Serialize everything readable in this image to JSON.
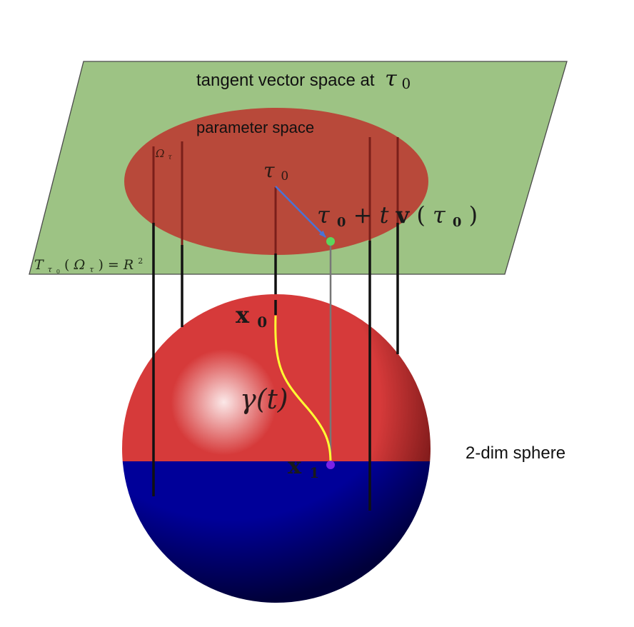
{
  "labels": {
    "tangent_title_text": "tangent vector space at ",
    "tangent_title_symbol": "τ",
    "tangent_title_sub": "0",
    "parameter_space": "parameter space",
    "omega_symbol": "Ω",
    "omega_sub": "τ",
    "tau0_symbol": "τ",
    "tau0_sub": "0",
    "step_prefix": "τ",
    "step_prefix_sub": "0",
    "step_middle": " + t",
    "step_vector": "v",
    "step_paren_open": "(",
    "step_arg": "τ",
    "step_arg_sub": "0",
    "step_paren_close": ")",
    "plane_T": "T",
    "plane_T_sub_tau": "τ",
    "plane_T_sub_zero": "0",
    "plane_open": "(",
    "plane_omega": "Ω",
    "plane_omega_sub": "τ",
    "plane_close": ") = ",
    "plane_R": "R",
    "plane_R_sup": "2",
    "x0_symbol": "x",
    "x0_sub": "0",
    "x1_symbol": "x",
    "x1_sub": "1",
    "gamma_text": "γ(t)",
    "sphere_label": "2-dim sphere"
  },
  "colors": {
    "plane_fill": "#9dc384",
    "plane_stroke": "#4a4a4a",
    "ellipse_fill": "#b8493a",
    "sphere_highlight": "#fbe8e8",
    "sphere_red": "#d63a3a",
    "sphere_dark_red": "#5a0d0d",
    "sphere_blue": "#000099",
    "sphere_dark_blue": "#00003a",
    "projection_line": "#111111",
    "gray_line": "#777777",
    "tangent_arrow": "#4a73d6",
    "geodesic": "#ffff33",
    "point_green": "#5cd65c",
    "point_purple": "#7b22e6"
  }
}
